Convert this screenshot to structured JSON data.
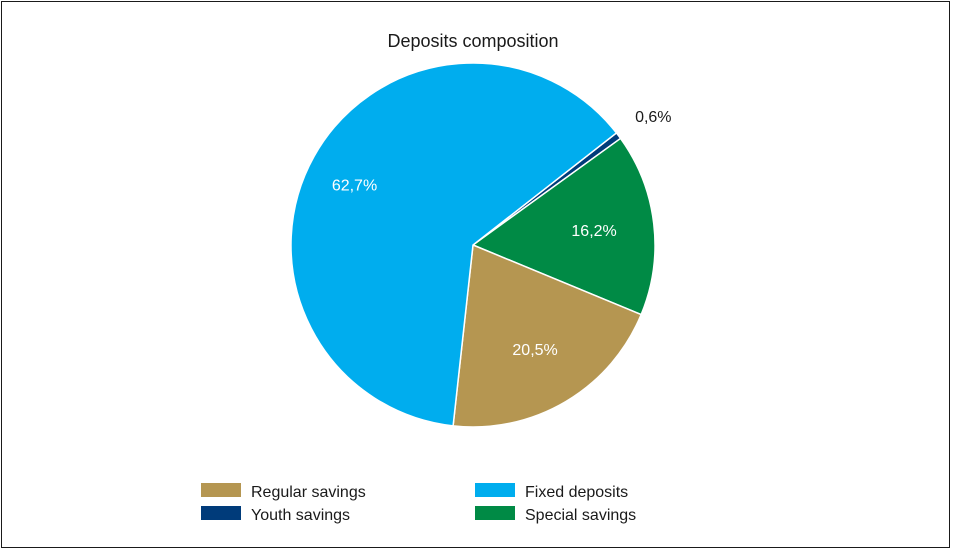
{
  "chart_data": {
    "type": "pie",
    "title": "Deposits composition",
    "slices": [
      {
        "name": "Youth savings",
        "value": 0.6,
        "label": "0,6%",
        "color": "#003b7a",
        "label_color": "#1a1a1a"
      },
      {
        "name": "Special savings",
        "value": 16.2,
        "label": "16,2%",
        "color": "#008a45",
        "label_color": "#ffffff"
      },
      {
        "name": "Regular savings",
        "value": 20.5,
        "label": "20,5%",
        "color": "#b59651",
        "label_color": "#ffffff"
      },
      {
        "name": "Fixed deposits",
        "value": 62.7,
        "label": "62,7%",
        "color": "#00adee",
        "label_color": "#ffffff"
      }
    ],
    "legend": [
      {
        "name": "Regular savings",
        "color": "#b59651"
      },
      {
        "name": "Fixed deposits",
        "color": "#00adee"
      },
      {
        "name": "Youth savings",
        "color": "#003b7a"
      },
      {
        "name": "Special savings",
        "color": "#008a45"
      }
    ],
    "legend_position": "bottom"
  }
}
